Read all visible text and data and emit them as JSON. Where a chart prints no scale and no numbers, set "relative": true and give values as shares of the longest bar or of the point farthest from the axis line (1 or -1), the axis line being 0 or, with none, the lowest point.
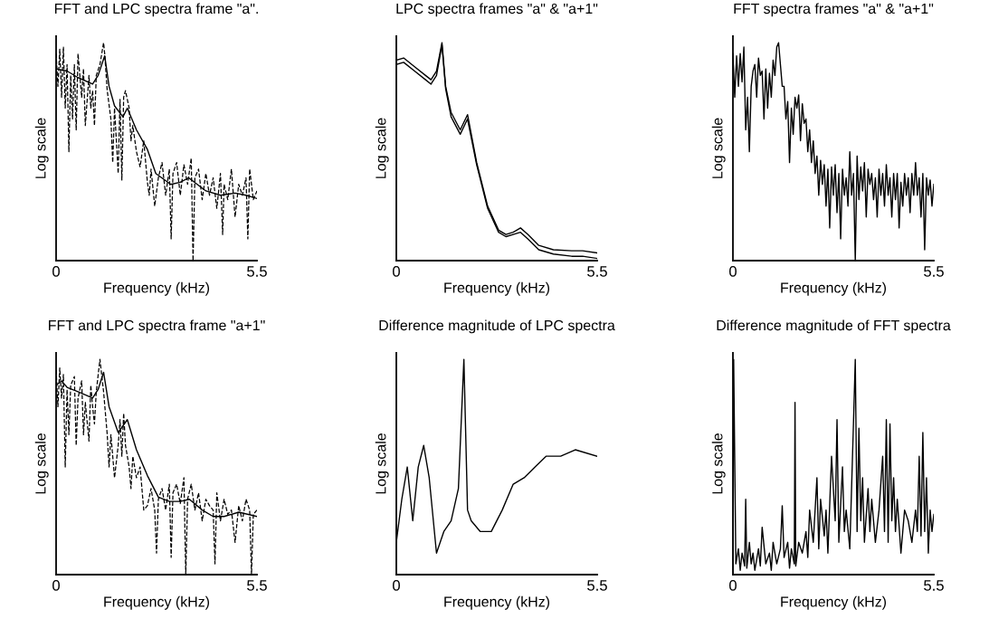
{
  "chart_data": [
    {
      "type": "line",
      "title": "FFT and LPC spectra frame \"a\".",
      "xlabel": "Frequency (kHz)",
      "ylabel": "Log scale",
      "relative": true,
      "xlim": [
        0,
        5.5
      ],
      "xticks": [
        0,
        5.5
      ],
      "series": [
        {
          "color": "#000000",
          "line_style": "dashed",
          "x": [
            0,
            0.05,
            0.1,
            0.15,
            0.2,
            0.25,
            0.3,
            0.35,
            0.4,
            0.45,
            0.5,
            0.55,
            0.6,
            0.7,
            0.75,
            0.8,
            0.9,
            0.95,
            1.0,
            1.05,
            1.1,
            1.2,
            1.3,
            1.33,
            1.4,
            1.5,
            1.55,
            1.6,
            1.7,
            1.75,
            1.8,
            1.85,
            1.9,
            2.0,
            2.05,
            2.1,
            2.2,
            2.3,
            2.4,
            2.5,
            2.55,
            2.6,
            2.7,
            2.8,
            2.9,
            3.0,
            3.1,
            3.15,
            3.2,
            3.3,
            3.4,
            3.5,
            3.6,
            3.7,
            3.75,
            3.8,
            3.9,
            4.0,
            4.1,
            4.2,
            4.3,
            4.4,
            4.5,
            4.56,
            4.6,
            4.7,
            4.8,
            4.9,
            5.0,
            5.1,
            5.2,
            5.25,
            5.3,
            5.4,
            5.5
          ],
          "values": [
            0.95,
            0.8,
            0.97,
            0.75,
            0.98,
            0.7,
            0.9,
            0.5,
            0.85,
            0.65,
            0.9,
            0.6,
            0.95,
            0.75,
            0.88,
            0.62,
            0.85,
            0.7,
            0.78,
            0.62,
            0.85,
            0.9,
            1.0,
            0.95,
            0.78,
            0.65,
            0.45,
            0.7,
            0.4,
            0.74,
            0.37,
            0.75,
            0.78,
            0.7,
            0.55,
            0.62,
            0.5,
            0.43,
            0.55,
            0.36,
            0.3,
            0.42,
            0.25,
            0.38,
            0.45,
            0.3,
            0.42,
            0.1,
            0.4,
            0.45,
            0.3,
            0.44,
            0.35,
            0.47,
            0.0,
            0.38,
            0.42,
            0.28,
            0.4,
            0.3,
            0.38,
            0.24,
            0.4,
            0.12,
            0.35,
            0.28,
            0.42,
            0.2,
            0.35,
            0.3,
            0.38,
            0.1,
            0.42,
            0.28,
            0.32
          ]
        },
        {
          "color": "#000000",
          "line_style": "solid",
          "x": [
            0,
            0.3,
            0.6,
            1.0,
            1.15,
            1.33,
            1.45,
            1.6,
            1.83,
            1.95,
            2.2,
            2.5,
            2.73,
            3.14,
            3.4,
            3.63,
            4.1,
            4.5,
            4.9,
            5.2,
            5.5
          ],
          "values": [
            0.88,
            0.87,
            0.84,
            0.81,
            0.85,
            0.94,
            0.8,
            0.71,
            0.66,
            0.7,
            0.6,
            0.51,
            0.4,
            0.35,
            0.36,
            0.38,
            0.32,
            0.3,
            0.31,
            0.3,
            0.285
          ]
        }
      ]
    },
    {
      "type": "line",
      "title": "LPC spectra frames \"a\" & \"a+1\"",
      "xlabel": "Frequency (kHz)",
      "ylabel": "Log scale",
      "relative": true,
      "xlim": [
        0,
        5.5
      ],
      "xticks": [
        0,
        5.5
      ],
      "series": [
        {
          "color": "#000000",
          "line_style": "solid",
          "x": [
            0,
            0.2,
            0.5,
            0.8,
            0.95,
            1.1,
            1.25,
            1.35,
            1.5,
            1.75,
            1.95,
            2.2,
            2.5,
            2.8,
            3.0,
            3.2,
            3.4,
            3.6,
            3.9,
            4.3,
            4.8,
            5.1,
            5.5
          ],
          "values": [
            0.92,
            0.93,
            0.89,
            0.85,
            0.83,
            0.87,
            1.0,
            0.8,
            0.68,
            0.6,
            0.67,
            0.45,
            0.25,
            0.14,
            0.12,
            0.13,
            0.15,
            0.12,
            0.07,
            0.05,
            0.045,
            0.045,
            0.035
          ]
        },
        {
          "color": "#000000",
          "line_style": "solid",
          "x": [
            0,
            0.2,
            0.5,
            0.8,
            0.95,
            1.1,
            1.25,
            1.35,
            1.5,
            1.75,
            1.95,
            2.2,
            2.5,
            2.8,
            3.0,
            3.2,
            3.4,
            3.6,
            3.9,
            4.3,
            4.8,
            5.1,
            5.5
          ],
          "values": [
            0.9,
            0.91,
            0.87,
            0.83,
            0.81,
            0.85,
            0.99,
            0.79,
            0.66,
            0.58,
            0.65,
            0.44,
            0.24,
            0.13,
            0.11,
            0.12,
            0.13,
            0.1,
            0.05,
            0.03,
            0.02,
            0.02,
            0.01
          ]
        }
      ]
    },
    {
      "type": "line",
      "title": "FFT spectra frames \"a\" & \"a+1\"",
      "xlabel": "Frequency (kHz)",
      "ylabel": "Log scale",
      "relative": true,
      "xlim": [
        0,
        5.5
      ],
      "xticks": [
        0,
        5.5
      ],
      "series": [
        {
          "color": "#000000",
          "line_style": "solid",
          "x": [
            0,
            0.05,
            0.1,
            0.15,
            0.2,
            0.25,
            0.3,
            0.35,
            0.4,
            0.45,
            0.5,
            0.55,
            0.6,
            0.65,
            0.7,
            0.75,
            0.8,
            0.85,
            0.9,
            0.95,
            1.0,
            1.05,
            1.1,
            1.15,
            1.2,
            1.25,
            1.3,
            1.35,
            1.4,
            1.45,
            1.5,
            1.55,
            1.6,
            1.65,
            1.7,
            1.75,
            1.8,
            1.85,
            1.9,
            1.95,
            2.0,
            2.05,
            2.1,
            2.15,
            2.2,
            2.25,
            2.3,
            2.35,
            2.4,
            2.45,
            2.5,
            2.55,
            2.6,
            2.65,
            2.7,
            2.75,
            2.8,
            2.85,
            2.9,
            2.95,
            3.0,
            3.05,
            3.1,
            3.15,
            3.2,
            3.25,
            3.3,
            3.35,
            3.4,
            3.45,
            3.5,
            3.55,
            3.6,
            3.65,
            3.7,
            3.75,
            3.8,
            3.85,
            3.9,
            3.95,
            4.0,
            4.05,
            4.1,
            4.15,
            4.2,
            4.25,
            4.3,
            4.35,
            4.4,
            4.45,
            4.5,
            4.55,
            4.6,
            4.65,
            4.7,
            4.75,
            4.8,
            4.85,
            4.9,
            4.95,
            5.0,
            5.05,
            5.1,
            5.15,
            5.2,
            5.25,
            5.3,
            5.35,
            5.4,
            5.45,
            5.5
          ],
          "values": [
            0.95,
            0.75,
            0.94,
            0.8,
            0.95,
            0.82,
            0.98,
            0.6,
            0.75,
            0.5,
            0.8,
            0.87,
            0.9,
            0.75,
            0.93,
            0.85,
            0.87,
            0.65,
            0.88,
            0.7,
            0.86,
            0.75,
            0.92,
            0.85,
            0.98,
            1.0,
            0.9,
            0.8,
            0.8,
            0.65,
            0.73,
            0.45,
            0.7,
            0.58,
            0.75,
            0.7,
            0.76,
            0.55,
            0.72,
            0.63,
            0.65,
            0.5,
            0.6,
            0.45,
            0.55,
            0.4,
            0.48,
            0.3,
            0.46,
            0.35,
            0.44,
            0.25,
            0.42,
            0.15,
            0.43,
            0.3,
            0.44,
            0.22,
            0.4,
            0.1,
            0.42,
            0.3,
            0.38,
            0.25,
            0.5,
            0.3,
            0.4,
            0.0,
            0.48,
            0.28,
            0.43,
            0.32,
            0.45,
            0.2,
            0.42,
            0.35,
            0.4,
            0.28,
            0.38,
            0.2,
            0.42,
            0.3,
            0.4,
            0.25,
            0.44,
            0.3,
            0.38,
            0.2,
            0.4,
            0.28,
            0.4,
            0.15,
            0.36,
            0.25,
            0.4,
            0.3,
            0.38,
            0.22,
            0.4,
            0.3,
            0.45,
            0.3,
            0.38,
            0.2,
            0.4,
            0.05,
            0.38,
            0.3,
            0.37,
            0.25,
            0.35
          ]
        }
      ]
    },
    {
      "type": "line",
      "title": "FFT and LPC spectra frame \"a+1\"",
      "xlabel": "Frequency (kHz)",
      "ylabel": "Log scale",
      "relative": true,
      "xlim": [
        0,
        5.5
      ],
      "xticks": [
        0,
        5.5
      ],
      "series": [
        {
          "color": "#000000",
          "line_style": "dashed",
          "x": [
            0,
            0.05,
            0.1,
            0.15,
            0.2,
            0.25,
            0.3,
            0.35,
            0.4,
            0.5,
            0.55,
            0.6,
            0.7,
            0.75,
            0.8,
            0.9,
            0.95,
            1.0,
            1.05,
            1.1,
            1.2,
            1.3,
            1.4,
            1.45,
            1.5,
            1.6,
            1.7,
            1.75,
            1.8,
            1.85,
            1.9,
            2.0,
            2.05,
            2.1,
            2.2,
            2.3,
            2.4,
            2.5,
            2.6,
            2.7,
            2.75,
            2.8,
            2.9,
            3.0,
            3.1,
            3.15,
            3.2,
            3.3,
            3.4,
            3.5,
            3.55,
            3.6,
            3.7,
            3.8,
            3.9,
            4.0,
            4.1,
            4.2,
            4.3,
            4.35,
            4.4,
            4.5,
            4.6,
            4.7,
            4.8,
            4.9,
            5.0,
            5.1,
            5.2,
            5.3,
            5.35,
            5.4,
            5.5
          ],
          "values": [
            0.95,
            0.78,
            0.96,
            0.82,
            0.93,
            0.5,
            0.86,
            0.65,
            0.88,
            0.92,
            0.6,
            0.82,
            0.9,
            0.65,
            0.8,
            0.62,
            0.88,
            0.78,
            0.7,
            0.85,
            1.0,
            0.85,
            0.65,
            0.5,
            0.65,
            0.45,
            0.6,
            0.72,
            0.55,
            0.75,
            0.6,
            0.5,
            0.4,
            0.55,
            0.45,
            0.5,
            0.3,
            0.32,
            0.4,
            0.3,
            0.1,
            0.35,
            0.4,
            0.3,
            0.42,
            0.08,
            0.38,
            0.42,
            0.33,
            0.45,
            0.0,
            0.35,
            0.42,
            0.3,
            0.38,
            0.25,
            0.35,
            0.32,
            0.3,
            0.05,
            0.38,
            0.25,
            0.35,
            0.28,
            0.3,
            0.15,
            0.32,
            0.25,
            0.35,
            0.3,
            0.0,
            0.28,
            0.3
          ]
        },
        {
          "color": "#000000",
          "line_style": "solid",
          "x": [
            0,
            0.15,
            0.3,
            0.6,
            1.0,
            1.15,
            1.3,
            1.45,
            1.7,
            1.95,
            2.2,
            2.5,
            2.8,
            3.1,
            3.4,
            3.65,
            4.0,
            4.3,
            4.6,
            5.0,
            5.5
          ],
          "values": [
            0.88,
            0.9,
            0.87,
            0.85,
            0.82,
            0.86,
            0.94,
            0.78,
            0.66,
            0.72,
            0.58,
            0.46,
            0.36,
            0.34,
            0.34,
            0.35,
            0.3,
            0.27,
            0.27,
            0.29,
            0.27
          ]
        }
      ]
    },
    {
      "type": "line",
      "title": "Difference magnitude of LPC spectra",
      "xlabel": "Frequency (kHz)",
      "ylabel": "Log scale",
      "relative": true,
      "xlim": [
        0,
        5.5
      ],
      "xticks": [
        0,
        5.5
      ],
      "series": [
        {
          "color": "#000000",
          "line_style": "solid",
          "x": [
            0,
            0.15,
            0.3,
            0.45,
            0.6,
            0.75,
            0.9,
            1.1,
            1.3,
            1.5,
            1.7,
            1.85,
            1.95,
            2.05,
            2.3,
            2.6,
            2.9,
            3.2,
            3.5,
            3.8,
            4.1,
            4.5,
            4.9,
            5.5
          ],
          "values": [
            0.15,
            0.35,
            0.5,
            0.25,
            0.5,
            0.6,
            0.45,
            0.1,
            0.2,
            0.25,
            0.4,
            1.0,
            0.3,
            0.25,
            0.2,
            0.2,
            0.3,
            0.42,
            0.45,
            0.5,
            0.55,
            0.55,
            0.58,
            0.55
          ]
        }
      ]
    },
    {
      "type": "line",
      "title": "Difference magnitude of FFT spectra",
      "xlabel": "Frequency (kHz)",
      "ylabel": "Log scale",
      "relative": true,
      "xlim": [
        0,
        5.5
      ],
      "xticks": [
        0,
        5.5
      ],
      "series": [
        {
          "color": "#000000",
          "line_style": "solid",
          "x": [
            0,
            0.02,
            0.08,
            0.15,
            0.2,
            0.25,
            0.32,
            0.35,
            0.38,
            0.45,
            0.5,
            0.55,
            0.6,
            0.7,
            0.75,
            0.8,
            0.9,
            1.0,
            1.05,
            1.1,
            1.2,
            1.3,
            1.35,
            1.4,
            1.5,
            1.55,
            1.6,
            1.68,
            1.7,
            1.72,
            1.8,
            1.9,
            2.0,
            2.05,
            2.1,
            2.2,
            2.3,
            2.35,
            2.4,
            2.5,
            2.55,
            2.6,
            2.7,
            2.8,
            2.85,
            2.9,
            3.0,
            3.05,
            3.1,
            3.2,
            3.3,
            3.35,
            3.4,
            3.45,
            3.5,
            3.55,
            3.6,
            3.7,
            3.75,
            3.8,
            3.9,
            4.0,
            4.1,
            4.15,
            4.2,
            4.25,
            4.3,
            4.35,
            4.4,
            4.45,
            4.5,
            4.6,
            4.7,
            4.8,
            4.9,
            5.0,
            5.05,
            5.1,
            5.15,
            5.2,
            5.25,
            5.3,
            5.35,
            5.4,
            5.45,
            5.5
          ],
          "values": [
            0.0,
            1.0,
            0.05,
            0.12,
            0.02,
            0.1,
            0.04,
            0.35,
            0.03,
            0.15,
            0.05,
            0.1,
            0.02,
            0.12,
            0.04,
            0.22,
            0.05,
            0.1,
            0.02,
            0.15,
            0.05,
            0.12,
            0.32,
            0.08,
            0.15,
            0.03,
            0.12,
            0.05,
            0.8,
            0.04,
            0.15,
            0.1,
            0.2,
            0.08,
            0.3,
            0.15,
            0.45,
            0.12,
            0.35,
            0.18,
            0.3,
            0.1,
            0.55,
            0.25,
            0.72,
            0.15,
            0.5,
            0.2,
            0.3,
            0.12,
            0.7,
            1.0,
            0.2,
            0.68,
            0.25,
            0.45,
            0.15,
            0.4,
            0.2,
            0.35,
            0.15,
            0.3,
            0.55,
            0.2,
            0.72,
            0.15,
            0.7,
            0.25,
            0.45,
            0.2,
            0.35,
            0.1,
            0.3,
            0.25,
            0.15,
            0.3,
            0.2,
            0.55,
            0.18,
            0.66,
            0.2,
            0.45,
            0.1,
            0.3,
            0.2,
            0.28
          ]
        }
      ]
    }
  ]
}
